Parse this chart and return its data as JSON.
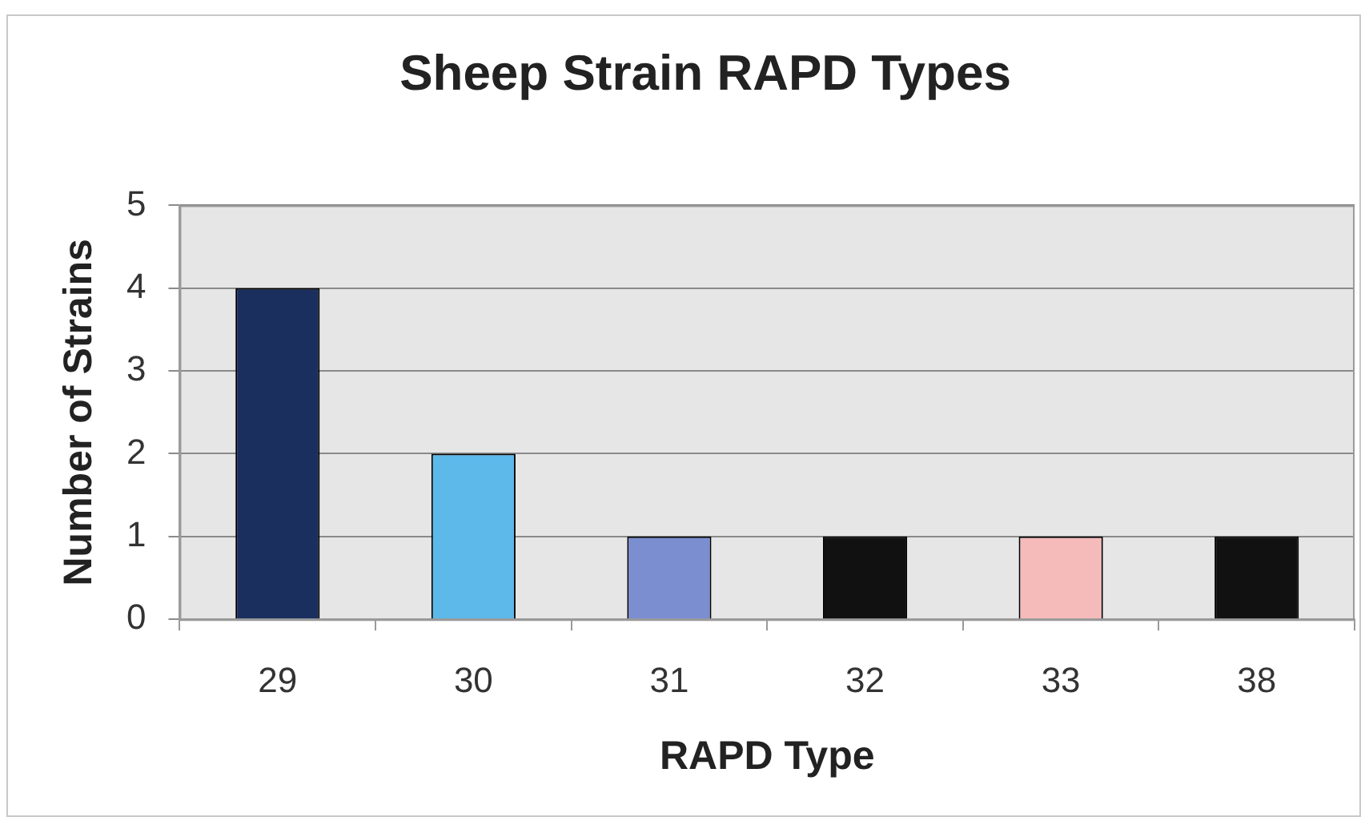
{
  "chart_data": {
    "type": "bar",
    "title": "Sheep Strain RAPD Types",
    "xlabel": "RAPD Type",
    "ylabel": "Number of Strains",
    "categories": [
      "29",
      "30",
      "31",
      "32",
      "33",
      "38"
    ],
    "values": [
      4,
      2,
      1,
      1,
      1,
      1
    ],
    "colors": [
      "#1b2f5f",
      "#5cb9e9",
      "#7a8ed0",
      "#111111",
      "#f5baba",
      "#111111"
    ],
    "ylim": [
      0,
      5
    ],
    "yticks": [
      0,
      1,
      2,
      3,
      4,
      5
    ],
    "grid": "y"
  }
}
